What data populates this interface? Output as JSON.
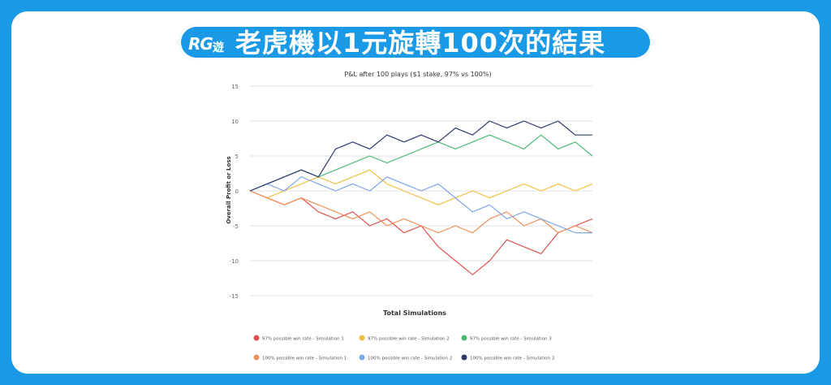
{
  "banner": {
    "logo_text": "RG",
    "logo_subtext": "遊",
    "title": "老虎機以1元旋轉100次的結果"
  },
  "colors": {
    "background": "#1a9ae6",
    "card": "#ffffff"
  },
  "chart_data": {
    "type": "line",
    "title": "P&L after 100 plays ($1 stake, 97% vs 100%)",
    "xlabel": "Total Simulations",
    "ylabel": "Overall Profit or Loss",
    "xlim": [
      0,
      100
    ],
    "ylim": [
      -15,
      15
    ],
    "yticks": [
      -15,
      -10,
      -5,
      0,
      5,
      10,
      15
    ],
    "grid": true,
    "legend_position": "bottom",
    "series": [
      {
        "name": "97% possible win rate - Simulation 1",
        "color": "#e0514f",
        "x": [
          0,
          5,
          10,
          15,
          20,
          25,
          30,
          35,
          40,
          45,
          50,
          55,
          60,
          65,
          70,
          75,
          80,
          85,
          90,
          95,
          100
        ],
        "y": [
          0,
          -1,
          -2,
          -1,
          -3,
          -4,
          -3,
          -5,
          -4,
          -6,
          -5,
          -8,
          -10,
          -12,
          -10,
          -7,
          -8,
          -9,
          -6,
          -5,
          -4
        ]
      },
      {
        "name": "97% possible win rate - Simulation 2",
        "color": "#f0c040",
        "x": [
          0,
          5,
          10,
          15,
          20,
          25,
          30,
          35,
          40,
          45,
          50,
          55,
          60,
          65,
          70,
          75,
          80,
          85,
          90,
          95,
          100
        ],
        "y": [
          0,
          -1,
          0,
          1,
          2,
          1,
          2,
          3,
          1,
          0,
          -1,
          -2,
          -1,
          0,
          -1,
          0,
          1,
          0,
          1,
          0,
          1
        ]
      },
      {
        "name": "97% possible win rate - Simulation 3",
        "color": "#4cb878",
        "x": [
          0,
          5,
          10,
          15,
          20,
          25,
          30,
          35,
          40,
          45,
          50,
          55,
          60,
          65,
          70,
          75,
          80,
          85,
          90,
          95,
          100
        ],
        "y": [
          0,
          1,
          2,
          3,
          2,
          3,
          4,
          5,
          4,
          5,
          6,
          7,
          6,
          7,
          8,
          7,
          6,
          8,
          6,
          7,
          5
        ]
      },
      {
        "name": "100% possible win rate - Simulation 1",
        "color": "#f0905a",
        "x": [
          0,
          5,
          10,
          15,
          20,
          25,
          30,
          35,
          40,
          45,
          50,
          55,
          60,
          65,
          70,
          75,
          80,
          85,
          90,
          95,
          100
        ],
        "y": [
          0,
          -1,
          -2,
          -1,
          -2,
          -3,
          -4,
          -3,
          -5,
          -4,
          -5,
          -6,
          -5,
          -6,
          -4,
          -3,
          -5,
          -4,
          -6,
          -5,
          -6
        ]
      },
      {
        "name": "100% possible win rate - Simulation 2",
        "color": "#7ea6e8",
        "x": [
          0,
          5,
          10,
          15,
          20,
          25,
          30,
          35,
          40,
          45,
          50,
          55,
          60,
          65,
          70,
          75,
          80,
          85,
          90,
          95,
          100
        ],
        "y": [
          0,
          1,
          0,
          2,
          1,
          0,
          1,
          0,
          2,
          1,
          0,
          1,
          -1,
          -3,
          -2,
          -4,
          -3,
          -4,
          -5,
          -6,
          -6
        ]
      },
      {
        "name": "100% possible win rate - Simulation 3",
        "color": "#2f3a6e",
        "x": [
          0,
          5,
          10,
          15,
          20,
          25,
          30,
          35,
          40,
          45,
          50,
          55,
          60,
          65,
          70,
          75,
          80,
          85,
          90,
          95,
          100
        ],
        "y": [
          0,
          1,
          2,
          3,
          2,
          6,
          7,
          6,
          8,
          7,
          8,
          7,
          9,
          8,
          10,
          9,
          10,
          9,
          10,
          8,
          8
        ]
      }
    ]
  }
}
